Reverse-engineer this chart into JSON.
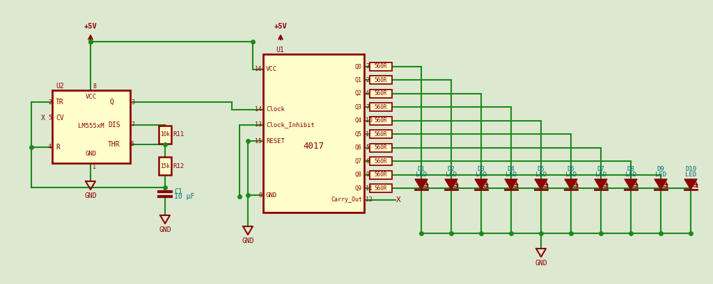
{
  "bg": "#dde8d0",
  "wc": "#1a8a1a",
  "ec": "#8b0000",
  "fc": "#ffffcc",
  "tr": "#8b0000",
  "tb": "#007070",
  "vcc_lbl": "+5V",
  "gnd_lbl": "GND",
  "lm555_ref": "U2",
  "lm555_name": "LM555xM",
  "ic4017_ref": "U1",
  "ic4017_name": "4017",
  "r11_val": "10k",
  "r11_ref": "R11",
  "r12_val": "15k",
  "r12_ref": "R12",
  "c1_ref": "C1",
  "c1_val": "10 μF",
  "res_val": "560R",
  "leds": [
    "D1",
    "D2",
    "D3",
    "D4",
    "D5",
    "D6",
    "D7",
    "D8",
    "D9",
    "D10"
  ],
  "q_names": [
    "Q0",
    "Q1",
    "Q2",
    "Q3",
    "Q4",
    "Q5",
    "Q6",
    "Q7",
    "Q8",
    "Q9"
  ],
  "q_nums": [
    "3",
    "2",
    "4",
    "7",
    "10",
    "1",
    "5",
    "6",
    "9",
    "11"
  ]
}
